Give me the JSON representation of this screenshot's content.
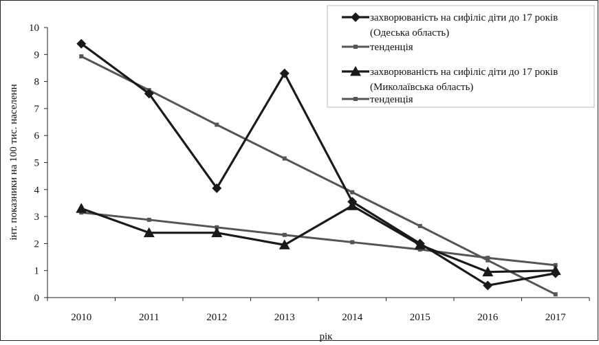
{
  "chart_data": {
    "type": "line",
    "xlabel": "рік",
    "ylabel": "інт. показники на 100 тис. населенн",
    "categories": [
      "2010",
      "2011",
      "2012",
      "2013",
      "2014",
      "2015",
      "2016",
      "2017"
    ],
    "ylim": [
      0,
      10
    ],
    "yticks": [
      "0",
      "1",
      "2",
      "3",
      "4",
      "5",
      "6",
      "7",
      "8",
      "9",
      "10"
    ],
    "grid": false,
    "legend_position": "top-right",
    "series": [
      {
        "name": "захворюваність на сифіліс діти до 17 років (Одеська область)",
        "legend_lines": [
          "захворюваність на сифіліс діти до 17 років",
          "(Одеська область)"
        ],
        "marker": "diamond",
        "color": "#1a1a1a",
        "values": [
          9.4,
          7.55,
          4.05,
          8.3,
          3.55,
          2.0,
          0.45,
          0.9
        ]
      },
      {
        "name": "тенденція",
        "legend_lines": [
          "тенденція"
        ],
        "marker": "square",
        "color": "#555555",
        "values": [
          8.93,
          7.68,
          6.4,
          5.15,
          3.9,
          2.65,
          1.38,
          0.12
        ]
      },
      {
        "name": "захворюваність на сифіліс діти до 17 років (Миколаївська область)",
        "legend_lines": [
          "захворюваність на сифіліс діти до 17 років",
          "(Миколаївська область)"
        ],
        "marker": "triangle",
        "color": "#1a1a1a",
        "values": [
          3.3,
          2.4,
          2.4,
          1.95,
          3.4,
          1.95,
          0.95,
          1.0
        ]
      },
      {
        "name": "тенденція",
        "legend_lines": [
          "тенденція"
        ],
        "marker": "square",
        "color": "#555555",
        "values": [
          3.15,
          2.88,
          2.6,
          2.32,
          2.05,
          1.78,
          1.47,
          1.2
        ]
      }
    ]
  }
}
